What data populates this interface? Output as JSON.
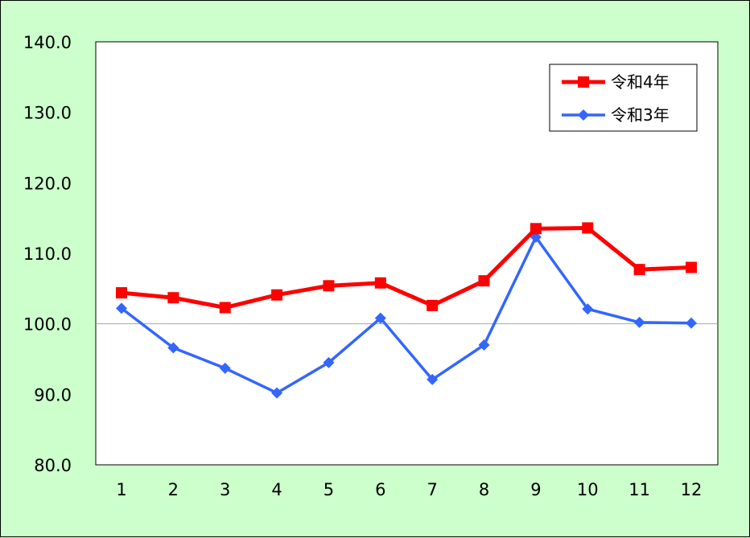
{
  "chart_data": {
    "type": "line",
    "categories": [
      "1",
      "2",
      "3",
      "4",
      "5",
      "6",
      "7",
      "8",
      "9",
      "10",
      "11",
      "12"
    ],
    "ylim": [
      80,
      140
    ],
    "yticks": [
      "80.0",
      "90.0",
      "100.0",
      "110.0",
      "120.0",
      "130.0",
      "140.0"
    ],
    "reference_line": 100,
    "grid": false,
    "legend_position": "top-right",
    "series": [
      {
        "name": "令和4年",
        "color": "#ff0000",
        "marker": "square",
        "values": [
          104.4,
          103.7,
          102.3,
          104.1,
          105.4,
          105.8,
          102.6,
          106.1,
          113.5,
          113.6,
          107.7,
          108.0
        ]
      },
      {
        "name": "令和3年",
        "color": "#3366ff",
        "marker": "diamond",
        "values": [
          102.2,
          96.6,
          93.7,
          90.2,
          94.5,
          100.8,
          92.1,
          97.0,
          112.3,
          102.1,
          100.2,
          100.1
        ]
      }
    ]
  }
}
